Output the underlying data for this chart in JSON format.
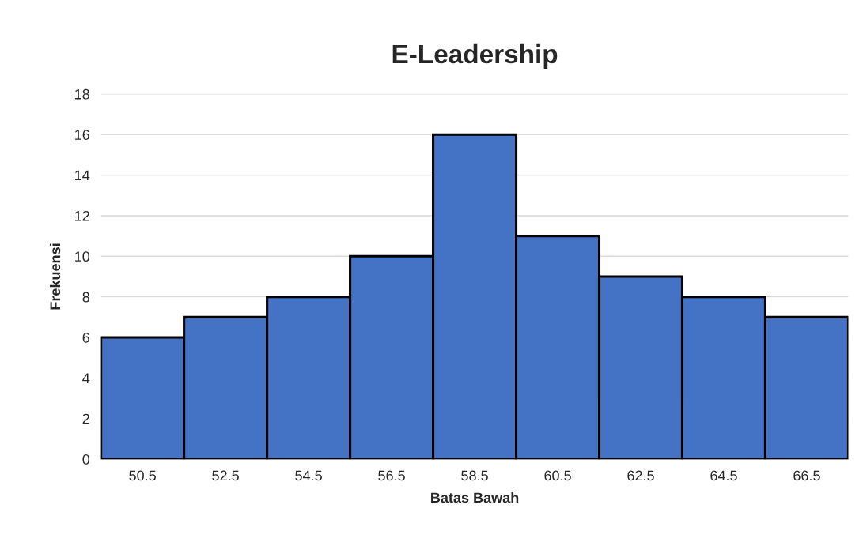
{
  "chart_data": {
    "type": "bar",
    "title": "E-Leadership",
    "xlabel": "Batas Bawah",
    "ylabel": "Frekuensi",
    "categories": [
      "50.5",
      "52.5",
      "54.5",
      "56.5",
      "58.5",
      "60.5",
      "62.5",
      "64.5",
      "66.5"
    ],
    "values": [
      6,
      7,
      8,
      10,
      16,
      11,
      9,
      8,
      7
    ],
    "color": "#4472c4",
    "ylim": [
      0,
      18
    ],
    "yticks": [
      0,
      2,
      4,
      6,
      8,
      10,
      12,
      14,
      16,
      18
    ],
    "grid": "y"
  }
}
